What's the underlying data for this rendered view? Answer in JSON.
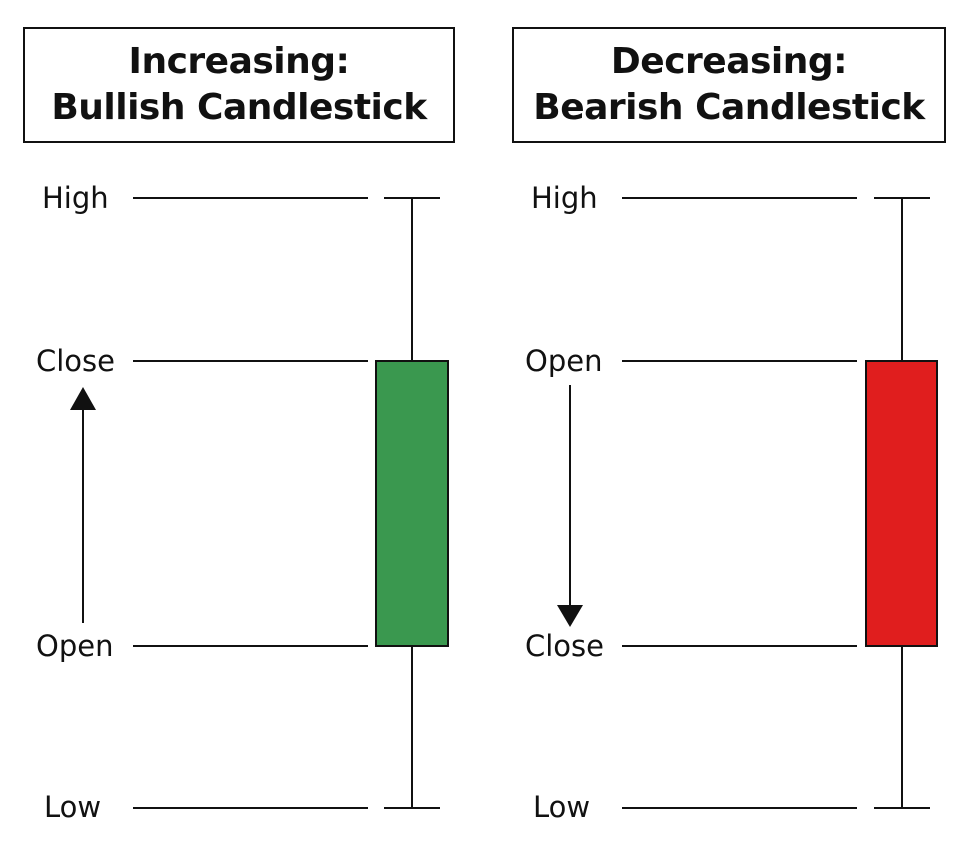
{
  "panels": [
    {
      "title_line1": "Increasing:",
      "title_line2": "Bullish Candlestick",
      "labels": {
        "high": "High",
        "upper": "Close",
        "lower": "Open",
        "low": "Low"
      },
      "body_color": "#3a984f",
      "arrow_direction": "up"
    },
    {
      "title_line1": "Decreasing:",
      "title_line2": "Bearish Candlestick",
      "labels": {
        "high": "High",
        "upper": "Open",
        "lower": "Close",
        "low": "Low"
      },
      "body_color": "#e01e1e",
      "arrow_direction": "down"
    }
  ]
}
